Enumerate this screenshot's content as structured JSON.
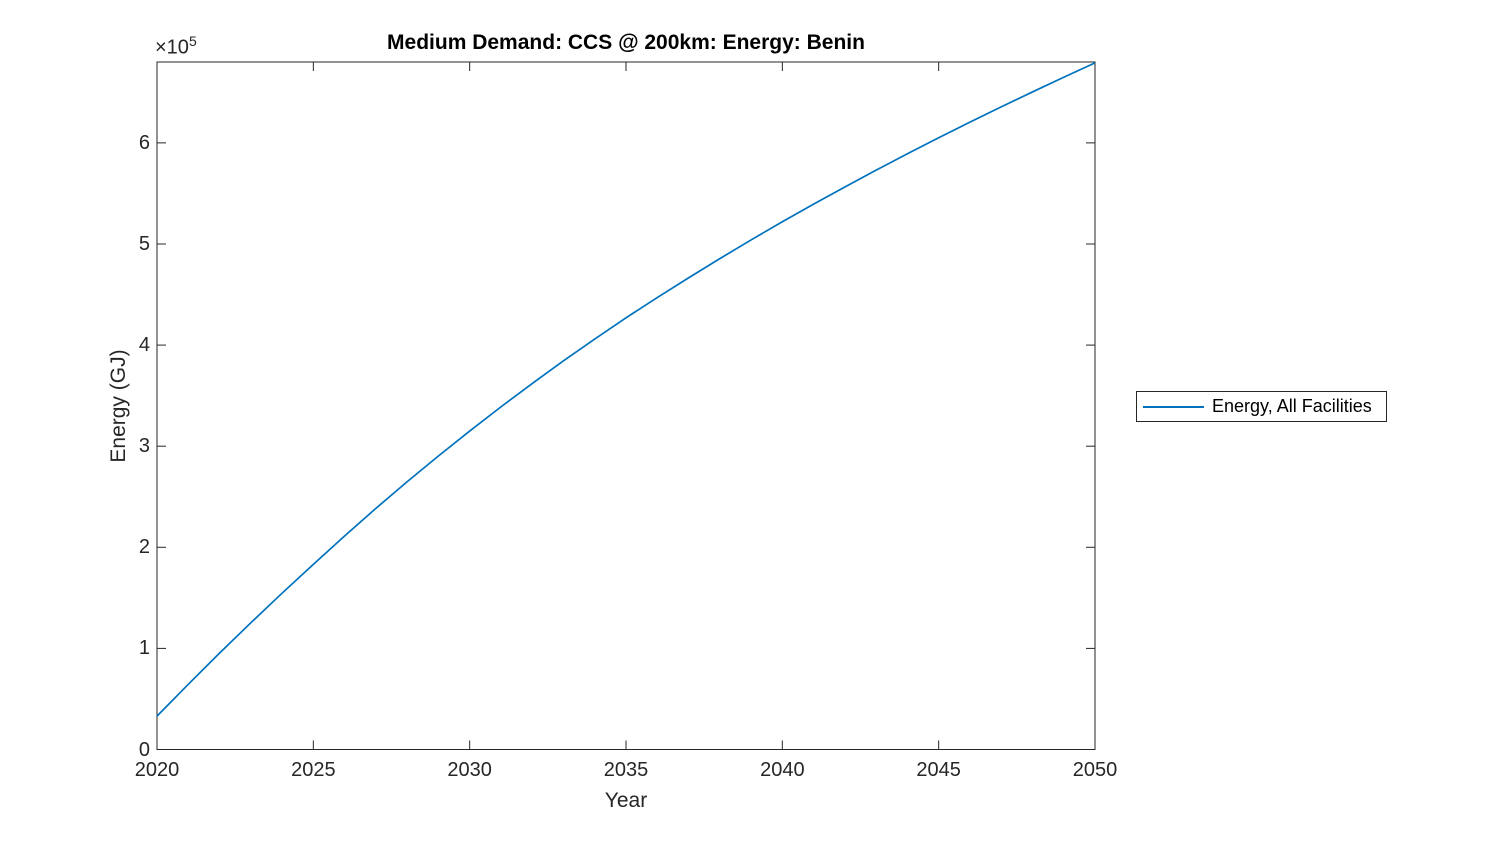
{
  "figure": {
    "title": "Medium Demand: CCS @ 200km: Energy: Benin",
    "background": "#ffffff"
  },
  "chart_data": {
    "type": "line",
    "title": "Medium Demand: CCS @ 200km: Energy: Benin",
    "xlabel": "Year",
    "ylabel": "Energy (GJ)",
    "y_offset_label": {
      "base": "×10",
      "exponent": "5"
    },
    "xlim": [
      2020,
      2050
    ],
    "ylim": [
      0,
      680000
    ],
    "x_ticks": [
      2020,
      2025,
      2030,
      2035,
      2040,
      2045,
      2050
    ],
    "x_tick_labels": [
      "2020",
      "2025",
      "2030",
      "2035",
      "2040",
      "2045",
      "2050"
    ],
    "y_ticks": [
      0,
      100000,
      200000,
      300000,
      400000,
      500000,
      600000
    ],
    "y_tick_labels": [
      "0",
      "1",
      "2",
      "3",
      "4",
      "5",
      "6"
    ],
    "grid": false,
    "box": true,
    "tick_direction": "in",
    "legend_position": "right-outside",
    "x": [
      2020,
      2021,
      2022,
      2023,
      2024,
      2025,
      2026,
      2027,
      2028,
      2029,
      2030,
      2031,
      2032,
      2033,
      2034,
      2035,
      2036,
      2037,
      2038,
      2039,
      2040,
      2041,
      2042,
      2043,
      2044,
      2045,
      2046,
      2047,
      2048,
      2049,
      2050
    ],
    "series": [
      {
        "name": "Energy, All Facilities",
        "color": "#0072BD",
        "values": [
          33000,
          64500,
          95300,
          125300,
          154600,
          183100,
          211200,
          238500,
          264800,
          290300,
          315000,
          338900,
          362000,
          384400,
          406000,
          427000,
          447000,
          466500,
          485500,
          504000,
          522000,
          539400,
          556400,
          573000,
          589200,
          605100,
          620500,
          635600,
          650400,
          664900,
          679100
        ]
      }
    ]
  },
  "legend": {
    "items": [
      {
        "label": "Energy, All Facilities",
        "color": "#0072BD"
      }
    ]
  },
  "colors": {
    "line": "#0072BD",
    "axis": "#262626",
    "tick_text": "#262626",
    "title_text": "#000000",
    "background": "#ffffff"
  }
}
